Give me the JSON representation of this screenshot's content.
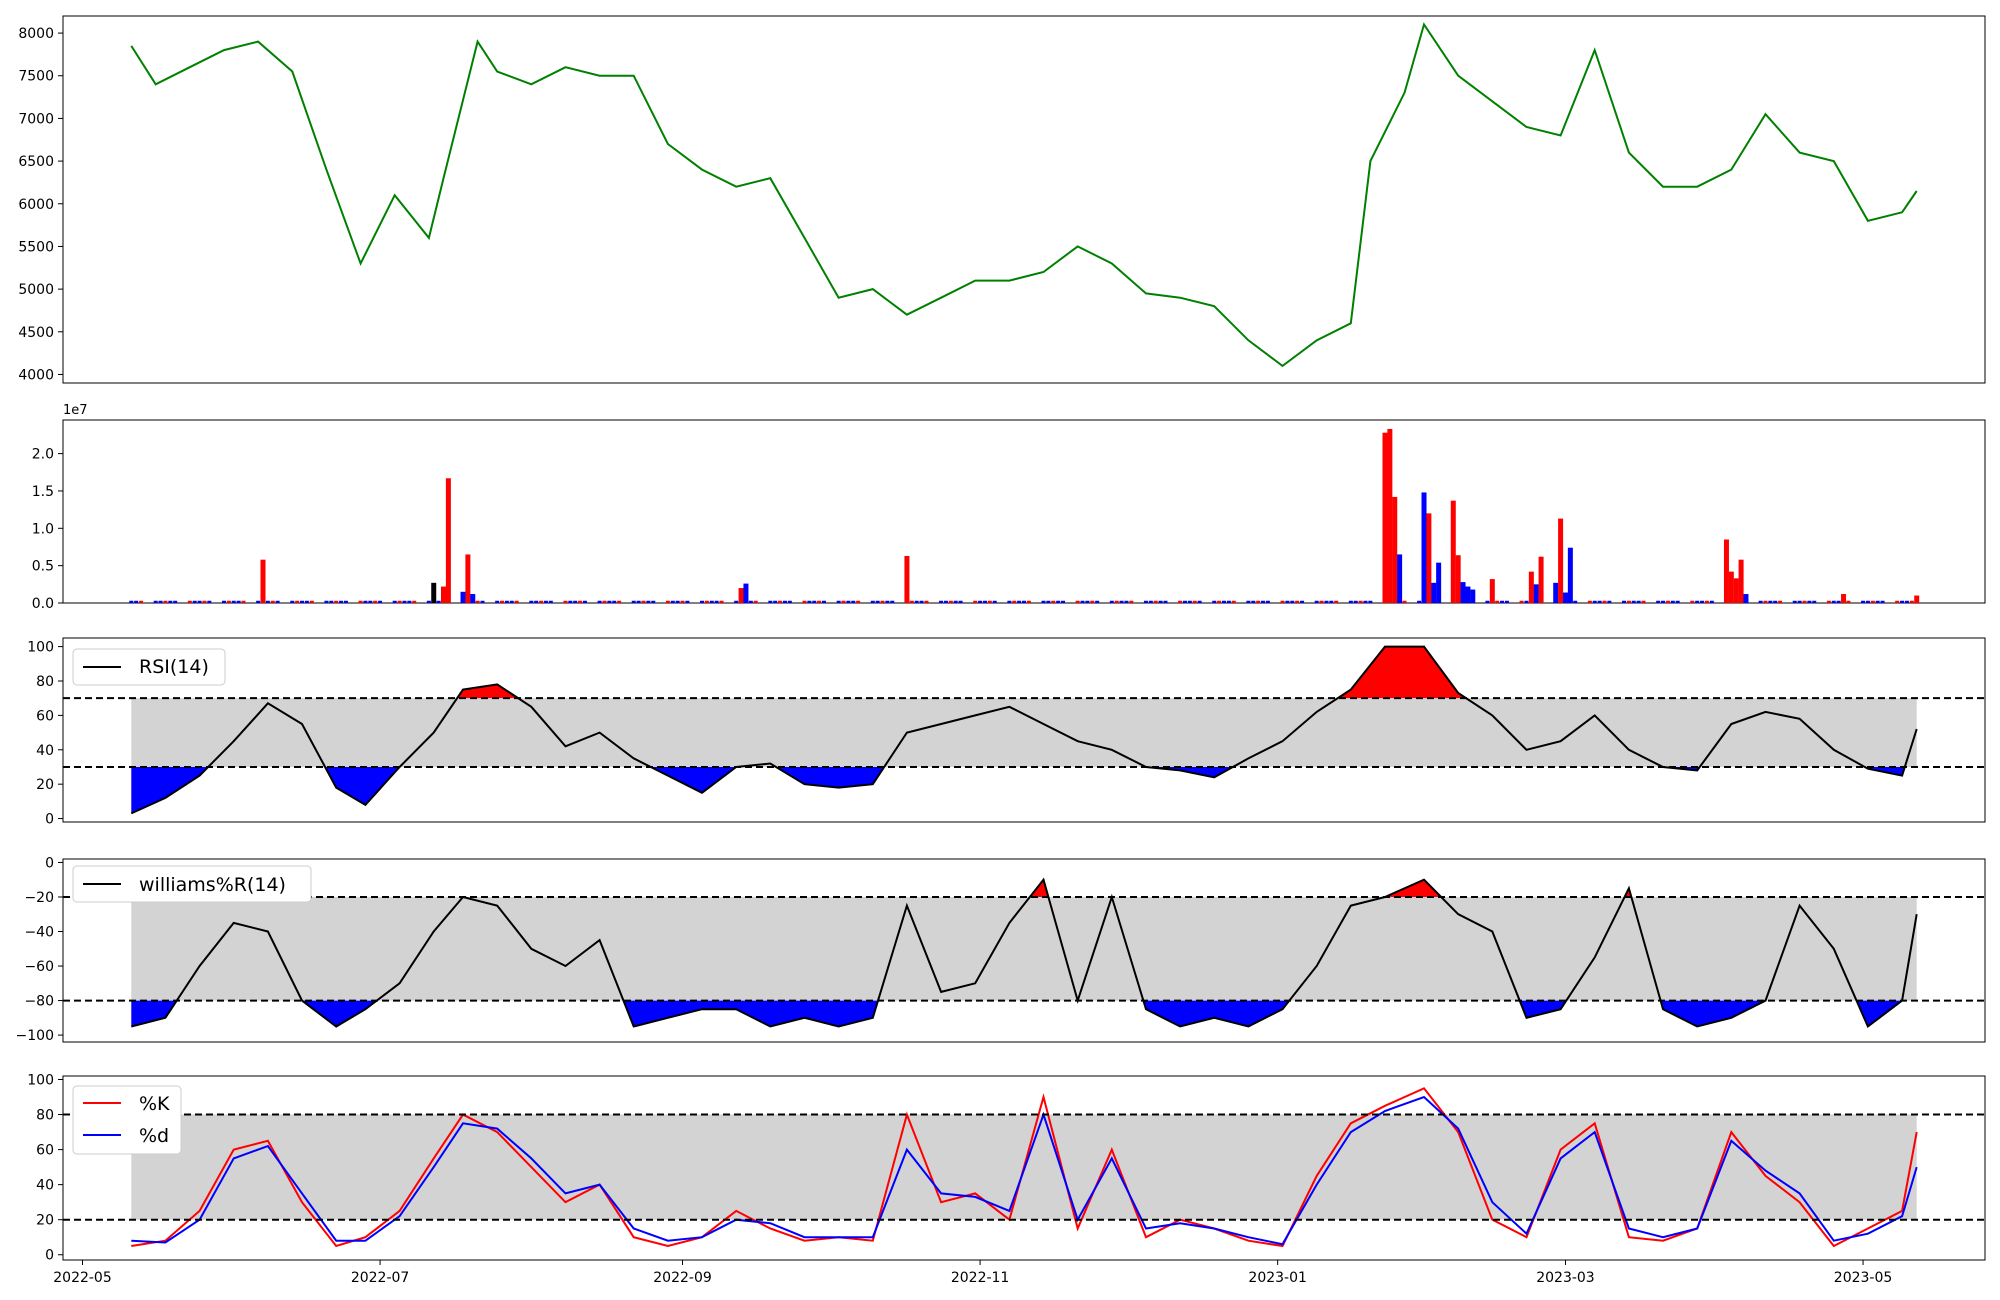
{
  "chart_data": [
    {
      "type": "line",
      "panel": "price",
      "color": "#008000",
      "ylim": [
        3900,
        8200
      ],
      "yticks": [
        4000,
        4500,
        5000,
        5500,
        6000,
        6500,
        7000,
        7500,
        8000
      ],
      "x_range": [
        "2022-04-27",
        "2023-05-26"
      ],
      "x": [
        "2022-05-11",
        "2022-05-16",
        "2022-05-23",
        "2022-05-30",
        "2022-06-06",
        "2022-06-13",
        "2022-06-20",
        "2022-06-27",
        "2022-07-04",
        "2022-07-11",
        "2022-07-14",
        "2022-07-21",
        "2022-07-25",
        "2022-08-01",
        "2022-08-08",
        "2022-08-15",
        "2022-08-22",
        "2022-08-29",
        "2022-09-05",
        "2022-09-12",
        "2022-09-19",
        "2022-09-26",
        "2022-10-03",
        "2022-10-10",
        "2022-10-17",
        "2022-10-24",
        "2022-10-31",
        "2022-11-07",
        "2022-11-14",
        "2022-11-21",
        "2022-11-28",
        "2022-12-05",
        "2022-12-12",
        "2022-12-19",
        "2022-12-26",
        "2023-01-02",
        "2023-01-09",
        "2023-01-16",
        "2023-01-20",
        "2023-01-27",
        "2023-01-31",
        "2023-02-07",
        "2023-02-14",
        "2023-02-21",
        "2023-02-28",
        "2023-03-07",
        "2023-03-14",
        "2023-03-21",
        "2023-03-28",
        "2023-04-04",
        "2023-04-11",
        "2023-04-18",
        "2023-04-25",
        "2023-05-02",
        "2023-05-09",
        "2023-05-12"
      ],
      "values": [
        7850,
        7400,
        7600,
        7800,
        7900,
        7550,
        6400,
        5300,
        6100,
        5600,
        6300,
        7900,
        7550,
        7400,
        7600,
        7500,
        7500,
        6700,
        6400,
        6200,
        6300,
        5600,
        4900,
        5000,
        4700,
        4900,
        5100,
        5100,
        5200,
        5500,
        5300,
        4950,
        4900,
        4800,
        4400,
        4100,
        4400,
        4600,
        6500,
        7300,
        8100,
        7500,
        7200,
        6900,
        6800,
        7800,
        6600,
        6200,
        6200,
        6400,
        7050,
        6600,
        6500,
        5800,
        5900,
        6150
      ]
    },
    {
      "type": "bar",
      "panel": "volume",
      "scale_label": "1e7",
      "ylim": [
        0,
        2.45
      ],
      "yticks": [
        "0.0",
        "0.5",
        "1.0",
        "1.5",
        "2.0"
      ],
      "x_range": [
        "2022-04-27",
        "2023-05-26"
      ],
      "colors": {
        "up": "#ff0000",
        "down": "#0000ff",
        "flat": "#000000"
      },
      "note": "values in units of 1e7",
      "bars": [
        {
          "x": "2022-06-07",
          "value": 0.58,
          "dir": "up"
        },
        {
          "x": "2022-07-12",
          "value": 0.27,
          "dir": "flat"
        },
        {
          "x": "2022-07-14",
          "value": 0.22,
          "dir": "up"
        },
        {
          "x": "2022-07-15",
          "value": 1.67,
          "dir": "up"
        },
        {
          "x": "2022-07-18",
          "value": 0.15,
          "dir": "down"
        },
        {
          "x": "2022-07-19",
          "value": 0.65,
          "dir": "up"
        },
        {
          "x": "2022-07-20",
          "value": 0.12,
          "dir": "down"
        },
        {
          "x": "2022-09-13",
          "value": 0.2,
          "dir": "up"
        },
        {
          "x": "2022-09-14",
          "value": 0.26,
          "dir": "down"
        },
        {
          "x": "2022-10-17",
          "value": 0.63,
          "dir": "up"
        },
        {
          "x": "2023-01-23",
          "value": 2.28,
          "dir": "up"
        },
        {
          "x": "2023-01-24",
          "value": 2.33,
          "dir": "up"
        },
        {
          "x": "2023-01-25",
          "value": 1.42,
          "dir": "up"
        },
        {
          "x": "2023-01-26",
          "value": 0.65,
          "dir": "down"
        },
        {
          "x": "2023-01-31",
          "value": 1.48,
          "dir": "down"
        },
        {
          "x": "2023-02-01",
          "value": 1.2,
          "dir": "up"
        },
        {
          "x": "2023-02-02",
          "value": 0.27,
          "dir": "down"
        },
        {
          "x": "2023-02-03",
          "value": 0.54,
          "dir": "down"
        },
        {
          "x": "2023-02-06",
          "value": 1.37,
          "dir": "up"
        },
        {
          "x": "2023-02-07",
          "value": 0.64,
          "dir": "up"
        },
        {
          "x": "2023-02-08",
          "value": 0.28,
          "dir": "down"
        },
        {
          "x": "2023-02-09",
          "value": 0.22,
          "dir": "down"
        },
        {
          "x": "2023-02-10",
          "value": 0.18,
          "dir": "down"
        },
        {
          "x": "2023-02-14",
          "value": 0.32,
          "dir": "up"
        },
        {
          "x": "2023-02-22",
          "value": 0.42,
          "dir": "up"
        },
        {
          "x": "2023-02-23",
          "value": 0.25,
          "dir": "down"
        },
        {
          "x": "2023-02-24",
          "value": 0.62,
          "dir": "up"
        },
        {
          "x": "2023-02-27",
          "value": 0.27,
          "dir": "down"
        },
        {
          "x": "2023-02-28",
          "value": 1.13,
          "dir": "up"
        },
        {
          "x": "2023-03-01",
          "value": 0.14,
          "dir": "down"
        },
        {
          "x": "2023-03-02",
          "value": 0.74,
          "dir": "down"
        },
        {
          "x": "2023-04-03",
          "value": 0.85,
          "dir": "up"
        },
        {
          "x": "2023-04-04",
          "value": 0.42,
          "dir": "up"
        },
        {
          "x": "2023-04-05",
          "value": 0.33,
          "dir": "up"
        },
        {
          "x": "2023-04-06",
          "value": 0.58,
          "dir": "up"
        },
        {
          "x": "2023-04-07",
          "value": 0.12,
          "dir": "down"
        },
        {
          "x": "2023-04-27",
          "value": 0.12,
          "dir": "up"
        },
        {
          "x": "2023-05-12",
          "value": 0.1,
          "dir": "up"
        }
      ]
    },
    {
      "type": "line",
      "panel": "rsi",
      "legend": "RSI(14)",
      "ylim": [
        -2,
        105
      ],
      "yticks": [
        0,
        20,
        40,
        60,
        80,
        100
      ],
      "upper": 70,
      "lower": 30,
      "colors": {
        "line": "#000000",
        "band": "#d3d3d3",
        "over": "#ff0000",
        "under": "#0000ff"
      },
      "x_range": [
        "2022-04-27",
        "2023-05-26"
      ],
      "x": [
        "2022-05-11",
        "2022-05-18",
        "2022-05-25",
        "2022-06-01",
        "2022-06-08",
        "2022-06-15",
        "2022-06-22",
        "2022-06-28",
        "2022-07-05",
        "2022-07-12",
        "2022-07-18",
        "2022-07-25",
        "2022-08-01",
        "2022-08-08",
        "2022-08-15",
        "2022-08-22",
        "2022-08-29",
        "2022-09-05",
        "2022-09-12",
        "2022-09-19",
        "2022-09-26",
        "2022-10-03",
        "2022-10-10",
        "2022-10-17",
        "2022-10-24",
        "2022-10-31",
        "2022-11-07",
        "2022-11-14",
        "2022-11-21",
        "2022-11-28",
        "2022-12-05",
        "2022-12-12",
        "2022-12-19",
        "2022-12-26",
        "2023-01-02",
        "2023-01-09",
        "2023-01-16",
        "2023-01-23",
        "2023-01-31",
        "2023-02-07",
        "2023-02-14",
        "2023-02-21",
        "2023-02-28",
        "2023-03-07",
        "2023-03-14",
        "2023-03-21",
        "2023-03-28",
        "2023-04-04",
        "2023-04-11",
        "2023-04-18",
        "2023-04-25",
        "2023-05-02",
        "2023-05-09",
        "2023-05-12"
      ],
      "values": [
        3,
        12,
        25,
        45,
        67,
        55,
        18,
        8,
        30,
        50,
        75,
        78,
        65,
        42,
        50,
        35,
        25,
        15,
        30,
        32,
        20,
        18,
        20,
        50,
        55,
        60,
        65,
        55,
        45,
        40,
        30,
        28,
        24,
        35,
        45,
        62,
        75,
        100,
        100,
        73,
        60,
        40,
        45,
        60,
        40,
        30,
        28,
        55,
        62,
        58,
        40,
        29,
        25,
        52
      ]
    },
    {
      "type": "line",
      "panel": "williams",
      "legend": "williams%R(14)",
      "ylim": [
        -104,
        2
      ],
      "yticks": [
        0,
        -20,
        -40,
        -60,
        -80,
        -100
      ],
      "upper": -20,
      "lower": -80,
      "colors": {
        "line": "#000000",
        "band": "#d3d3d3",
        "over": "#ff0000",
        "under": "#0000ff"
      },
      "x_range": [
        "2022-04-27",
        "2023-05-26"
      ],
      "x": [
        "2022-05-11",
        "2022-05-18",
        "2022-05-25",
        "2022-06-01",
        "2022-06-08",
        "2022-06-15",
        "2022-06-22",
        "2022-06-28",
        "2022-07-05",
        "2022-07-12",
        "2022-07-18",
        "2022-07-25",
        "2022-08-01",
        "2022-08-08",
        "2022-08-15",
        "2022-08-22",
        "2022-08-29",
        "2022-09-05",
        "2022-09-12",
        "2022-09-19",
        "2022-09-26",
        "2022-10-03",
        "2022-10-10",
        "2022-10-17",
        "2022-10-24",
        "2022-10-31",
        "2022-11-07",
        "2022-11-14",
        "2022-11-21",
        "2022-11-28",
        "2022-12-05",
        "2022-12-12",
        "2022-12-19",
        "2022-12-26",
        "2023-01-02",
        "2023-01-09",
        "2023-01-16",
        "2023-01-23",
        "2023-01-31",
        "2023-02-07",
        "2023-02-14",
        "2023-02-21",
        "2023-02-28",
        "2023-03-07",
        "2023-03-14",
        "2023-03-21",
        "2023-03-28",
        "2023-04-04",
        "2023-04-11",
        "2023-04-18",
        "2023-04-25",
        "2023-05-02",
        "2023-05-09",
        "2023-05-12"
      ],
      "values": [
        -95,
        -90,
        -60,
        -35,
        -40,
        -80,
        -95,
        -85,
        -70,
        -40,
        -20,
        -25,
        -50,
        -60,
        -45,
        -95,
        -90,
        -85,
        -85,
        -95,
        -90,
        -95,
        -90,
        -25,
        -75,
        -70,
        -35,
        -10,
        -80,
        -20,
        -85,
        -95,
        -90,
        -95,
        -85,
        -60,
        -25,
        -20,
        -10,
        -30,
        -40,
        -90,
        -85,
        -55,
        -15,
        -85,
        -95,
        -90,
        -80,
        -25,
        -50,
        -95,
        -80,
        -30
      ]
    },
    {
      "type": "line",
      "panel": "stochastic",
      "ylim": [
        -3,
        102
      ],
      "yticks": [
        0,
        20,
        40,
        60,
        80,
        100
      ],
      "upper": 80,
      "lower": 20,
      "colors": {
        "band": "#d3d3d3"
      },
      "x_range": [
        "2022-04-27",
        "2023-05-26"
      ],
      "xticks": [
        "2022-05",
        "2022-07",
        "2022-09",
        "2022-11",
        "2023-01",
        "2023-03",
        "2023-05"
      ],
      "x": [
        "2022-05-11",
        "2022-05-18",
        "2022-05-25",
        "2022-06-01",
        "2022-06-08",
        "2022-06-15",
        "2022-06-22",
        "2022-06-28",
        "2022-07-05",
        "2022-07-12",
        "2022-07-18",
        "2022-07-25",
        "2022-08-01",
        "2022-08-08",
        "2022-08-15",
        "2022-08-22",
        "2022-08-29",
        "2022-09-05",
        "2022-09-12",
        "2022-09-19",
        "2022-09-26",
        "2022-10-03",
        "2022-10-10",
        "2022-10-17",
        "2022-10-24",
        "2022-10-31",
        "2022-11-07",
        "2022-11-14",
        "2022-11-21",
        "2022-11-28",
        "2022-12-05",
        "2022-12-12",
        "2022-12-19",
        "2022-12-26",
        "2023-01-02",
        "2023-01-09",
        "2023-01-16",
        "2023-01-23",
        "2023-01-31",
        "2023-02-07",
        "2023-02-14",
        "2023-02-21",
        "2023-02-28",
        "2023-03-07",
        "2023-03-14",
        "2023-03-21",
        "2023-03-28",
        "2023-04-04",
        "2023-04-11",
        "2023-04-18",
        "2023-04-25",
        "2023-05-02",
        "2023-05-09",
        "2023-05-12"
      ],
      "series": [
        {
          "name": "%K",
          "color": "#ff0000",
          "values": [
            5,
            8,
            25,
            60,
            65,
            30,
            5,
            10,
            25,
            55,
            80,
            70,
            50,
            30,
            40,
            10,
            5,
            10,
            25,
            15,
            8,
            10,
            8,
            80,
            30,
            35,
            20,
            90,
            15,
            60,
            10,
            20,
            15,
            8,
            5,
            45,
            75,
            85,
            95,
            70,
            20,
            10,
            60,
            75,
            10,
            8,
            15,
            70,
            45,
            30,
            5,
            15,
            25,
            70
          ]
        },
        {
          "name": "%d",
          "color": "#0000ff",
          "values": [
            8,
            7,
            20,
            55,
            62,
            35,
            8,
            8,
            22,
            50,
            75,
            72,
            55,
            35,
            40,
            15,
            8,
            10,
            20,
            18,
            10,
            10,
            10,
            60,
            35,
            33,
            25,
            80,
            20,
            55,
            15,
            18,
            15,
            10,
            6,
            40,
            70,
            82,
            90,
            72,
            30,
            12,
            55,
            70,
            15,
            10,
            15,
            65,
            48,
            35,
            8,
            12,
            22,
            50
          ]
        }
      ]
    }
  ]
}
